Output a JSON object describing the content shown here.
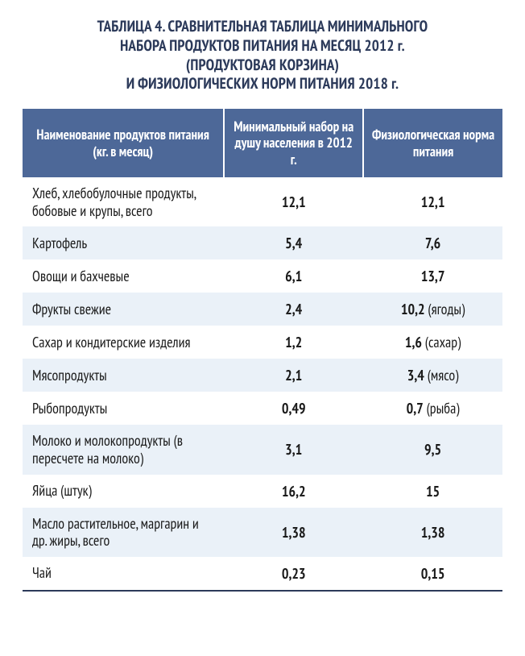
{
  "title_lines": [
    "ТАБЛИЦА 4. СРАВНИТЕЛЬНАЯ ТАБЛИЦА МИНИМАЛЬНОГО",
    "НАБОРА ПРОДУКТОВ ПИТАНИЯ НА МЕСЯЦ 2012 г.",
    "(ПРОДУКТОВАЯ КОРЗИНА)",
    "И ФИЗИОЛОГИЧЕСКИХ НОРМ ПИТАНИЯ 2018 г."
  ],
  "columns": [
    "Наименование продуктов питания (кг. в месяц)",
    "Минимальный набор на душу населения в 2012 г.",
    "Физиологическая норма питания"
  ],
  "colors": {
    "header_bg": "#4d6898",
    "header_text": "#ffffff",
    "title_text": "#2c3a5a",
    "stripe_bg": "#eaf1f8",
    "body_text": "#1a1a1a",
    "border_bottom": "#2c3a5a"
  },
  "rows": [
    {
      "name": "Хлеб, хлебобулочные продукты, бобовые и крупы, всего",
      "v1": "12,1",
      "v2": "12,1",
      "note2": "",
      "stripe": false
    },
    {
      "name": "Картофель",
      "v1": "5,4",
      "v2": "7,6",
      "note2": "",
      "stripe": true
    },
    {
      "name": "Овощи и бахчевые",
      "v1": "6,1",
      "v2": "13,7",
      "note2": "",
      "stripe": false
    },
    {
      "name": "Фрукты свежие",
      "v1": "2,4",
      "v2": "10,2",
      "note2": " (ягоды)",
      "stripe": true
    },
    {
      "name": "Сахар и кондитерские изделия",
      "v1": "1,2",
      "v2": "1,6",
      "note2": " (сахар)",
      "stripe": false
    },
    {
      "name": "Мясопродукты",
      "v1": "2,1",
      "v2": "3,4",
      "note2": "  (мясо)",
      "stripe": true
    },
    {
      "name": "Рыбопродукты",
      "v1": "0,49",
      "v2": "0,7",
      "note2": " (рыба)",
      "stripe": false
    },
    {
      "name": "Молоко и молокопродукты (в пересчете на молоко)",
      "v1": "3,1",
      "v2": "9,5",
      "note2": "",
      "stripe": true
    },
    {
      "name": "Яйца (штук)",
      "v1": "16,2",
      "v2": "15",
      "note2": "",
      "stripe": false
    },
    {
      "name": "Масло растительное, маргарин и др. жиры, всего",
      "v1": "1,38",
      "v2": "1,38",
      "note2": "",
      "stripe": true
    },
    {
      "name": "Чай",
      "v1": "0,23",
      "v2": "0,15",
      "note2": "",
      "stripe": false
    }
  ]
}
